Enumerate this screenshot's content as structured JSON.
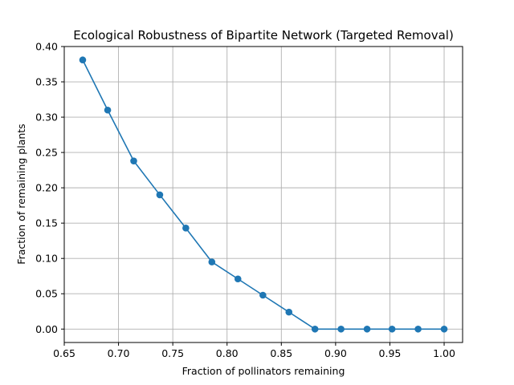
{
  "chart_data": {
    "type": "line",
    "title": "Ecological Robustness of Bipartite Network (Targeted Removal)",
    "xlabel": "Fraction of pollinators remaining",
    "ylabel": "Fraction of remaining plants",
    "xlim": [
      0.65,
      1.017
    ],
    "ylim": [
      -0.019,
      0.4
    ],
    "xticks": [
      "0.65",
      "0.70",
      "0.75",
      "0.80",
      "0.85",
      "0.90",
      "0.95",
      "1.00"
    ],
    "yticks": [
      "0.00",
      "0.05",
      "0.10",
      "0.15",
      "0.20",
      "0.25",
      "0.30",
      "0.35",
      "0.40"
    ],
    "grid": true,
    "series": [
      {
        "color": "#1f77b4",
        "marker": "circle",
        "x": [
          0.667,
          0.69,
          0.714,
          0.738,
          0.762,
          0.786,
          0.81,
          0.833,
          0.857,
          0.881,
          0.905,
          0.929,
          0.952,
          0.976,
          1.0
        ],
        "y": [
          0.381,
          0.31,
          0.238,
          0.19,
          0.143,
          0.095,
          0.071,
          0.048,
          0.024,
          0.0,
          0.0,
          0.0,
          0.0,
          0.0,
          0.0
        ]
      }
    ]
  }
}
